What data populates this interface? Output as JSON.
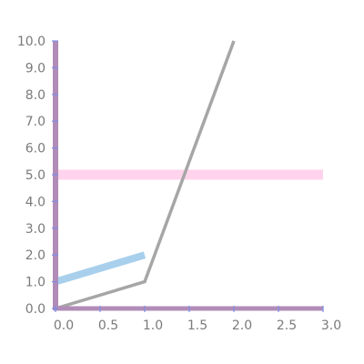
{
  "chart_data": {
    "type": "line",
    "title": "",
    "xlabel": "",
    "ylabel": "",
    "xlim": [
      0,
      3
    ],
    "ylim": [
      0,
      10
    ],
    "x_ticks": [
      "0.0",
      "0.5",
      "1.0",
      "1.5",
      "2.0",
      "2.5",
      "3.0"
    ],
    "y_ticks": [
      "0.0",
      "1.0",
      "2.0",
      "3.0",
      "4.0",
      "5.0",
      "6.0",
      "7.0",
      "8.0",
      "9.0",
      "10.0"
    ],
    "grid": false,
    "series": [
      {
        "x": [
          0,
          1,
          2
        ],
        "y": [
          0,
          1,
          10
        ],
        "color": "#a6a6a6"
      },
      {
        "x": [
          0,
          1
        ],
        "y": [
          1,
          2
        ],
        "color": "#a8d0ec"
      },
      {
        "x": [
          0,
          3
        ],
        "y": [
          5,
          5
        ],
        "color": "#ffd3ec"
      }
    ],
    "axis_color": "#b18cb8",
    "tick_color": "#7b8fe6"
  }
}
